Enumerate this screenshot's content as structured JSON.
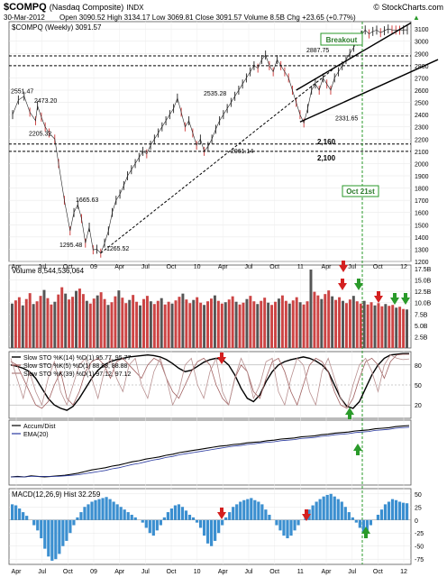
{
  "header": {
    "symbol": "$COMPQ",
    "name": "(Nasdaq Composite)",
    "exchange": "INDX",
    "copyright": "© StockCharts.com",
    "date": "30-Mar-2012",
    "quote": "Open 3090.52  High 3134.17  Low 3069.81  Close 3091.57  Volume 8.5B  Chg +23.65 (+0.77%)",
    "legend": "$COMPQ (Weekly) 3091.57",
    "up_arrow": "▲"
  },
  "chart_data": [
    {
      "type": "line",
      "panel": "price",
      "title": "$COMPQ (Weekly) 3091.57",
      "x_labels": [
        "Apr",
        "Jul",
        "Oct",
        "09",
        "Apr",
        "Jul",
        "Oct",
        "10",
        "Apr",
        "Jul",
        "Oct",
        "11",
        "Apr",
        "Jul",
        "Oct",
        "12"
      ],
      "y_ticks": [
        1200,
        1300,
        1400,
        1500,
        1600,
        1700,
        1800,
        1900,
        2000,
        2100,
        2200,
        2300,
        2400,
        2500,
        2600,
        2700,
        2800,
        2900,
        3000,
        3100
      ],
      "ylim": [
        1200,
        3160
      ],
      "series": [
        {
          "x": [
            0,
            3,
            6,
            9,
            12,
            13,
            15,
            17,
            19,
            22,
            24,
            27,
            30,
            32,
            34,
            36,
            38,
            40,
            42,
            44,
            46,
            48,
            50,
            52,
            54,
            56,
            58,
            60,
            62,
            64,
            66,
            68,
            70,
            72,
            74,
            76,
            78,
            80,
            82,
            84,
            86,
            88,
            90,
            92,
            94,
            96,
            98,
            100,
            102,
            104,
            106,
            108,
            110,
            112,
            114,
            116,
            118,
            120,
            122,
            124,
            126,
            128,
            130,
            132,
            134,
            136,
            138,
            140,
            142,
            144,
            146,
            148,
            150,
            152,
            154,
            156,
            158,
            160,
            162,
            164,
            166,
            168,
            170,
            172,
            174,
            176,
            178,
            180,
            182,
            184,
            186,
            188,
            190,
            192,
            194,
            196,
            198,
            200,
            202,
            204,
            206
          ],
          "y": [
            2400,
            2520,
            2551,
            2420,
            2350,
            2473,
            2380,
            2300,
            2250,
            2200,
            2000,
            1700,
            1450,
            1600,
            1666,
            1550,
            1350,
            1480,
            1295,
            1300,
            1268,
            1350,
            1450,
            1600,
            1700,
            1750,
            1820,
            1900,
            1950,
            2000,
            2050,
            2100,
            2080,
            2150,
            2200,
            2250,
            2300,
            2350,
            2400,
            2450,
            2535,
            2420,
            2300,
            2350,
            2250,
            2150,
            2200,
            2100,
            2141,
            2200,
            2280,
            2350,
            2400,
            2450,
            2500,
            2550,
            2600,
            2650,
            2700,
            2750,
            2800,
            2780,
            2850,
            2887,
            2800,
            2750,
            2850,
            2800,
            2750,
            2700,
            2600,
            2500,
            2400,
            2332,
            2450,
            2600,
            2650,
            2600,
            2700,
            2650,
            2600,
            2700,
            2750,
            2800,
            2850,
            2900,
            2950,
            3000,
            3050,
            3092,
            3060,
            3080,
            3091,
            3070,
            3085,
            3100,
            3092,
            3091,
            3090,
            3092,
            3092
          ]
        }
      ],
      "price_labels": [
        "2551.47",
        "2473.20",
        "2205.32",
        "1665.63",
        "1295.48",
        "1265.52",
        "2535.28",
        "2061.14",
        "2887.75",
        "2331.65"
      ],
      "annotations": [
        "Breakout",
        "2,160",
        "2,100",
        "Oct 21st"
      ]
    },
    {
      "type": "bar",
      "panel": "volume",
      "title": "Volume 8,544,536,064",
      "y_ticks": [
        "17.5B",
        "15.0B",
        "12.5B",
        "10.0B",
        "7.5B",
        "5.0B",
        "2.5B"
      ],
      "ylim": [
        0,
        17.5
      ],
      "values": [
        9.8,
        10.5,
        11.2,
        9.4,
        10.8,
        12.1,
        9.7,
        10.3,
        11.5,
        12.8,
        11.0,
        9.6,
        10.2,
        11.8,
        13.4,
        12.0,
        10.7,
        11.3,
        12.6,
        13.1,
        11.9,
        10.4,
        9.8,
        10.9,
        11.6,
        12.3,
        10.8,
        9.5,
        10.1,
        11.4,
        12.7,
        11.1,
        9.9,
        10.6,
        11.7,
        10.2,
        9.4,
        10.8,
        11.5,
        10.3,
        9.7,
        10.4,
        11.0,
        9.6,
        10.2,
        9.8,
        10.5,
        11.3,
        12.0,
        10.7,
        9.9,
        10.6,
        11.2,
        10.0,
        9.5,
        10.3,
        10.9,
        11.6,
        10.4,
        9.8,
        10.1,
        10.7,
        11.4,
        10.2,
        9.6,
        10.0,
        10.8,
        11.5,
        10.3,
        9.7,
        10.4,
        11.1,
        10.0,
        9.5,
        10.2,
        10.9,
        11.6,
        10.4,
        9.8,
        10.5,
        11.2,
        10.1,
        9.6,
        10.3,
        17.3,
        12.4,
        11.6,
        10.8,
        11.9,
        12.7,
        11.4,
        10.6,
        11.2,
        10.4,
        9.9,
        10.7,
        11.5,
        10.3,
        9.8,
        10.4,
        9.6,
        10.1,
        9.4,
        9.9,
        9.2,
        9.7,
        9.3,
        9.5,
        8.9,
        9.1,
        8.6,
        8.5
      ],
      "colors": {
        "down": "#cc4444",
        "up": "#555555"
      }
    },
    {
      "type": "line",
      "panel": "stochastics",
      "legend": [
        "Slow STO %K(14) %D(1) 95.77, 95.77",
        "Slow STO %K(5) %D(1) 88.88, 88.88",
        "Slow STO %K(39) %D(1) 97.12, 97.12"
      ],
      "y_ticks": [
        80,
        50,
        20
      ],
      "ylim": [
        0,
        100
      ],
      "series": [
        {
          "name": "Slow STO %K(39) %D(1) 97.12, 97.12",
          "values": [
            80,
            78,
            75,
            70,
            60,
            45,
            30,
            20,
            15,
            12,
            18,
            30,
            45,
            60,
            72,
            80,
            85,
            88,
            90,
            92,
            93,
            94,
            95,
            94,
            92,
            88,
            82,
            75,
            70,
            72,
            78,
            84,
            88,
            90,
            88,
            80,
            65,
            45,
            30,
            25,
            35,
            55,
            70,
            80,
            85,
            88,
            90,
            92,
            90,
            86,
            80,
            70,
            50,
            30,
            18,
            15,
            25,
            45,
            65,
            80,
            90,
            95,
            96,
            97,
            97
          ]
        },
        {
          "name": "Slow STO %K(14) %D(1) 95.77, 95.77",
          "values": [
            85,
            80,
            60,
            40,
            20,
            15,
            25,
            50,
            70,
            30,
            20,
            40,
            70,
            85,
            90,
            80,
            60,
            85,
            90,
            80,
            70,
            60,
            80,
            90,
            85,
            60,
            40,
            30,
            50,
            70,
            85,
            90,
            80,
            50,
            30,
            20,
            60,
            80,
            70,
            40,
            30,
            60,
            85,
            90,
            70,
            40,
            20,
            50,
            80,
            90,
            85,
            70,
            40,
            20,
            15,
            30,
            60,
            85,
            90,
            80,
            60,
            85,
            95,
            96,
            96
          ]
        },
        {
          "name": "Slow STO %K(5) %D(1) 88.88, 88.88",
          "values": [
            90,
            60,
            30,
            70,
            40,
            20,
            60,
            85,
            40,
            20,
            50,
            80,
            90,
            60,
            30,
            70,
            90,
            60,
            40,
            80,
            90,
            50,
            30,
            70,
            90,
            60,
            20,
            40,
            80,
            90,
            50,
            30,
            70,
            90,
            40,
            20,
            60,
            90,
            70,
            30,
            50,
            85,
            90,
            40,
            20,
            60,
            90,
            80,
            40,
            20,
            70,
            90,
            60,
            30,
            15,
            50,
            80,
            90,
            70,
            40,
            80,
            95,
            90,
            88,
            89
          ]
        }
      ]
    },
    {
      "type": "line",
      "panel": "accumulation",
      "legend": [
        "Accum/Dist",
        "EMA(20)"
      ],
      "series": [
        {
          "name": "Accum/Dist",
          "values": [
            5,
            6,
            5,
            7,
            6,
            5,
            6,
            7,
            8,
            10,
            12,
            15,
            18,
            20,
            22,
            25,
            27,
            30,
            33,
            35,
            38,
            40,
            42,
            45,
            47,
            50,
            52,
            54,
            56,
            58,
            60,
            62,
            63,
            65,
            66,
            68,
            69,
            70,
            72,
            73,
            75,
            76,
            77,
            79,
            80,
            81,
            83,
            84,
            86,
            87,
            88,
            90,
            91,
            92,
            94,
            95,
            96,
            98,
            99,
            100
          ]
        },
        {
          "name": "EMA(20)",
          "values": [
            5,
            5,
            5,
            6,
            6,
            6,
            6,
            6,
            7,
            8,
            9,
            11,
            13,
            15,
            17,
            20,
            22,
            25,
            28,
            30,
            33,
            36,
            38,
            41,
            43,
            46,
            48,
            50,
            52,
            54,
            56,
            58,
            60,
            62,
            63,
            65,
            66,
            68,
            69,
            70,
            72,
            73,
            74,
            76,
            77,
            78,
            80,
            81,
            83,
            84,
            85,
            87,
            88,
            89,
            91,
            92,
            93,
            95,
            96,
            97
          ]
        }
      ]
    },
    {
      "type": "bar",
      "panel": "macd",
      "legend": "MACD(12,26,9) Hist 32.259",
      "y_ticks": [
        50,
        25,
        0,
        -25,
        -50,
        -75
      ],
      "ylim": [
        -85,
        60
      ],
      "values": [
        30,
        28,
        22,
        15,
        8,
        0,
        -10,
        -20,
        -35,
        -55,
        -70,
        -78,
        -75,
        -65,
        -50,
        -40,
        -25,
        -10,
        5,
        15,
        25,
        30,
        35,
        38,
        40,
        42,
        44,
        40,
        35,
        30,
        25,
        20,
        15,
        10,
        5,
        0,
        -5,
        -15,
        -25,
        -30,
        -20,
        -10,
        5,
        15,
        22,
        28,
        30,
        25,
        18,
        10,
        5,
        -5,
        -15,
        -30,
        -45,
        -50,
        -40,
        -25,
        -10,
        5,
        15,
        25,
        30,
        35,
        38,
        40,
        42,
        38,
        35,
        30,
        20,
        10,
        0,
        -10,
        -20,
        -30,
        -35,
        -30,
        -20,
        -10,
        0,
        10,
        20,
        28,
        35,
        40,
        45,
        48,
        50,
        45,
        40,
        35,
        25,
        15,
        5,
        -5,
        -15,
        -25,
        -20,
        -10,
        0,
        10,
        20,
        30,
        35,
        40,
        38,
        35,
        33,
        32
      ],
      "colors": {
        "bars": "#3b8fd0"
      }
    }
  ]
}
